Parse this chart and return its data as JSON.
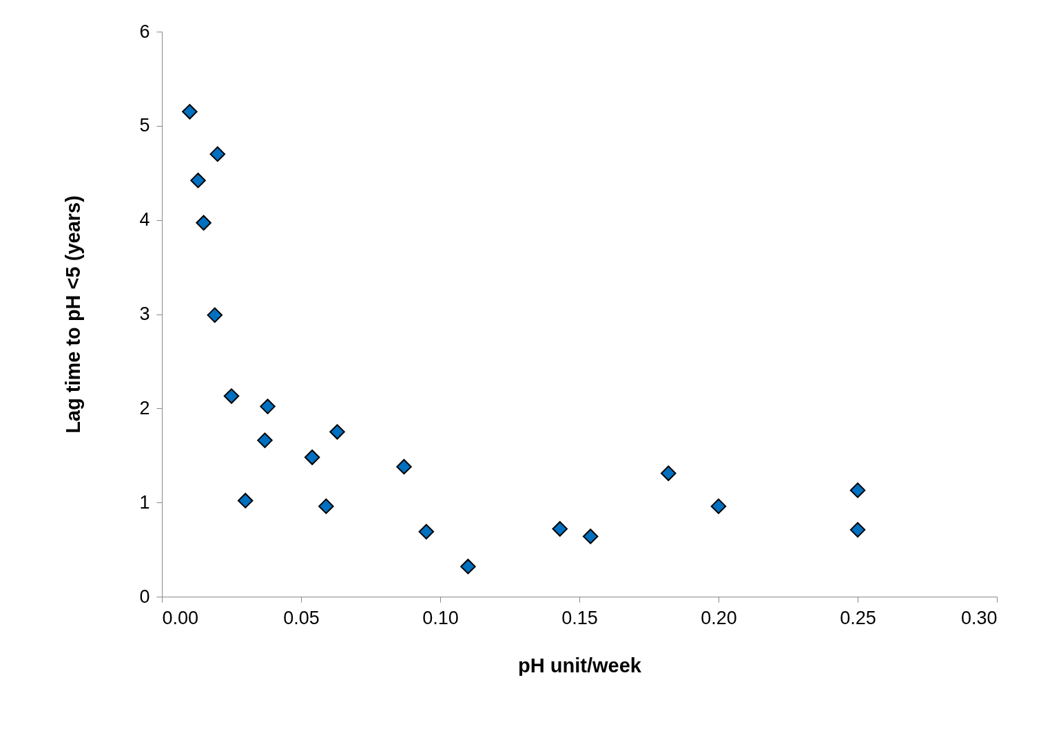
{
  "chart_data": {
    "type": "scatter",
    "xlabel": "pH unit/week",
    "ylabel": "Lag time to pH <5 (years)",
    "x": [
      0.01,
      0.013,
      0.02,
      0.015,
      0.019,
      0.025,
      0.038,
      0.037,
      0.03,
      0.054,
      0.063,
      0.059,
      0.087,
      0.095,
      0.11,
      0.143,
      0.154,
      0.182,
      0.2,
      0.25,
      0.25
    ],
    "values": [
      5.15,
      4.42,
      4.7,
      3.97,
      2.99,
      2.13,
      2.02,
      1.66,
      1.02,
      1.48,
      1.75,
      0.96,
      1.38,
      0.69,
      0.32,
      0.72,
      0.64,
      1.31,
      0.96,
      1.13,
      0.71
    ],
    "color": "#0070c0",
    "marker": "diamond",
    "grid": false,
    "xlim": [
      0,
      0.3
    ],
    "xticks": [
      {
        "value": 0,
        "label": "0.00"
      },
      {
        "value": 0.05,
        "label": "0.05"
      },
      {
        "value": 0.1,
        "label": "0.10"
      },
      {
        "value": 0.15,
        "label": "0.15"
      },
      {
        "value": 0.2,
        "label": "0.20"
      },
      {
        "value": 0.25,
        "label": "0.25"
      },
      {
        "value": 0.3,
        "label": "0.30"
      }
    ],
    "ylim": [
      0,
      6
    ],
    "yticks": [
      0,
      1,
      2,
      3,
      4,
      5,
      6
    ]
  }
}
